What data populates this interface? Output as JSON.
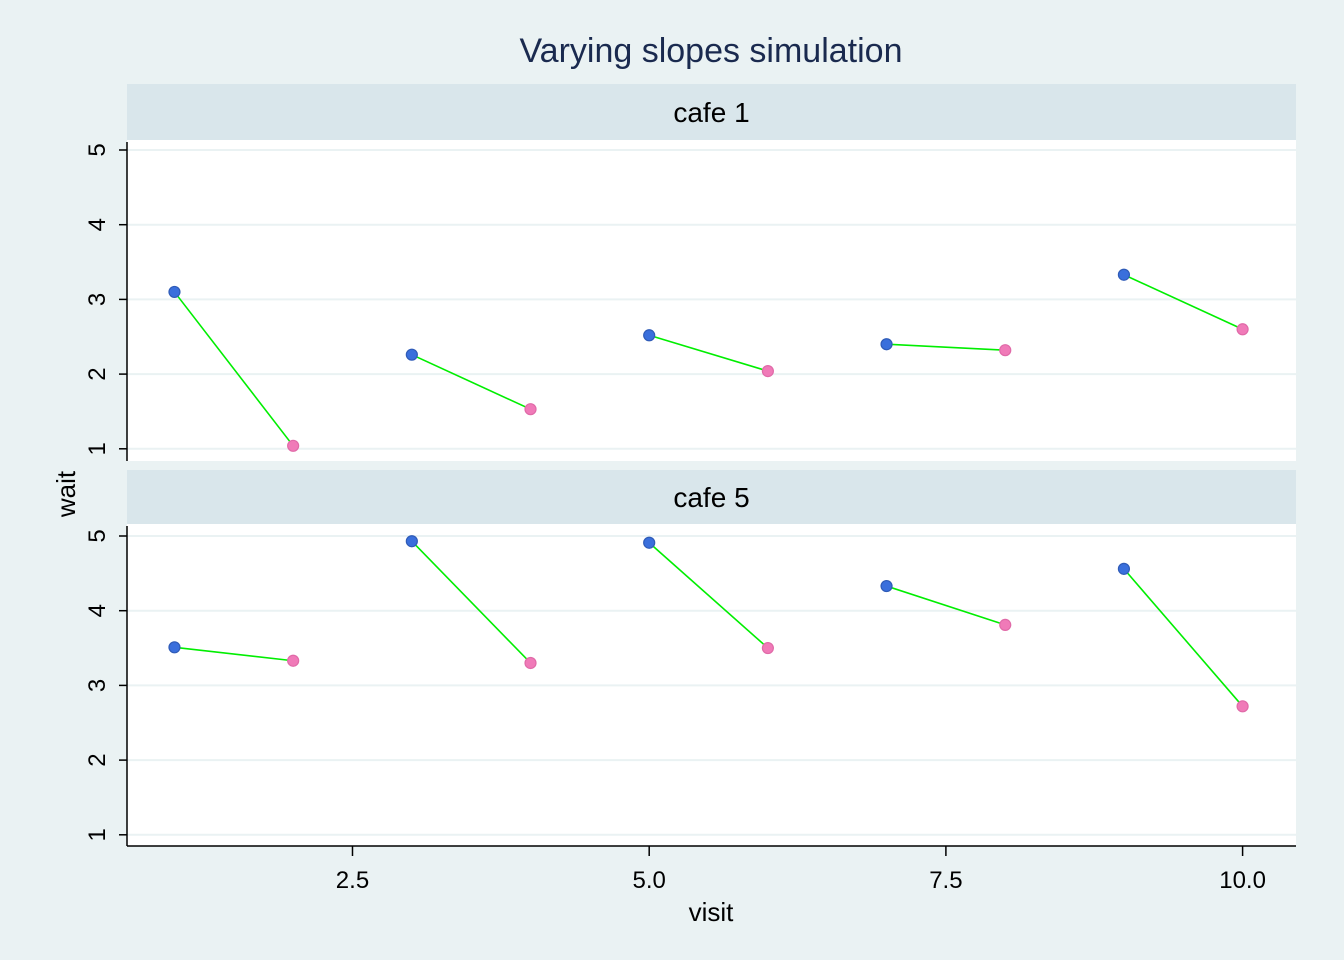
{
  "chart_data": {
    "type": "scatter",
    "title": "Varying slopes simulation",
    "xlabel": "visit",
    "ylabel": "wait",
    "xlim": [
      0.6,
      10.45
    ],
    "ylim": [
      0.85,
      5.1
    ],
    "x_ticks": [
      "2.5",
      "5.0",
      "7.5",
      "10.0"
    ],
    "x_tick_values": [
      2.5,
      5.0,
      7.5,
      10.0
    ],
    "y_ticks": [
      "1",
      "2",
      "3",
      "4",
      "5"
    ],
    "y_tick_values": [
      1,
      2,
      3,
      4,
      5
    ],
    "grid": true,
    "colors": {
      "background": "#eaf2f3",
      "panel": "#ffffff",
      "strip": "#d9e6eb",
      "grid": "#eaf2f3",
      "title": "#1a2a4f",
      "line": "#00ee00",
      "morning": "#3a6fdc",
      "afternoon": "#f07ab8"
    },
    "panels": [
      {
        "label": "cafe 1",
        "points": [
          {
            "x": 1,
            "y": 3.1,
            "kind": "morning"
          },
          {
            "x": 2,
            "y": 1.04,
            "kind": "afternoon"
          },
          {
            "x": 3,
            "y": 2.26,
            "kind": "morning"
          },
          {
            "x": 4,
            "y": 1.53,
            "kind": "afternoon"
          },
          {
            "x": 5,
            "y": 2.52,
            "kind": "morning"
          },
          {
            "x": 6,
            "y": 2.04,
            "kind": "afternoon"
          },
          {
            "x": 7,
            "y": 2.4,
            "kind": "morning"
          },
          {
            "x": 8,
            "y": 2.32,
            "kind": "afternoon"
          },
          {
            "x": 9,
            "y": 3.33,
            "kind": "morning"
          },
          {
            "x": 10,
            "y": 2.6,
            "kind": "afternoon"
          }
        ]
      },
      {
        "label": "cafe 5",
        "points": [
          {
            "x": 1,
            "y": 3.51,
            "kind": "morning"
          },
          {
            "x": 2,
            "y": 3.33,
            "kind": "afternoon"
          },
          {
            "x": 3,
            "y": 4.93,
            "kind": "morning"
          },
          {
            "x": 4,
            "y": 3.3,
            "kind": "afternoon"
          },
          {
            "x": 5,
            "y": 4.91,
            "kind": "morning"
          },
          {
            "x": 6,
            "y": 3.5,
            "kind": "afternoon"
          },
          {
            "x": 7,
            "y": 4.33,
            "kind": "morning"
          },
          {
            "x": 8,
            "y": 3.81,
            "kind": "afternoon"
          },
          {
            "x": 9,
            "y": 4.56,
            "kind": "morning"
          },
          {
            "x": 10,
            "y": 2.72,
            "kind": "afternoon"
          }
        ]
      }
    ]
  }
}
